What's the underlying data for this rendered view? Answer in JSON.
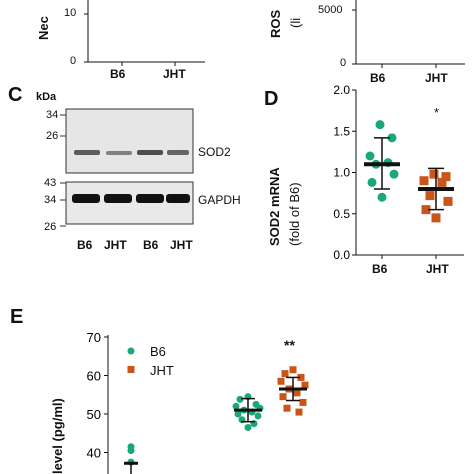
{
  "panelA_partial": {
    "ylabel": "Nec",
    "ytick_top": "10",
    "ytick_bottom": "0",
    "xcats": [
      "B6",
      "JHT"
    ]
  },
  "panelB_partial": {
    "ylabel": "ROS",
    "ylabel_sub": "(li",
    "yticks": [
      "5000",
      "0"
    ],
    "xcats": [
      "B6",
      "JHT"
    ]
  },
  "panelC": {
    "letter": "C",
    "kda_label": "kDa",
    "top_markers": [
      "34",
      "26"
    ],
    "bottom_markers": [
      "43",
      "34",
      "26"
    ],
    "band_top_label": "SOD2",
    "band_bottom_label": "GAPDH",
    "lanes": [
      "B6",
      "JHT",
      "B6",
      "JHT"
    ]
  },
  "panelD": {
    "letter": "D",
    "ylabel_line1": "SOD2 mRNA",
    "ylabel_line2": "(fold of B6)",
    "significance": "*",
    "colors": {
      "B6": "#1aa77a",
      "JHT": "#c8561a"
    },
    "chart_data": {
      "type": "scatter",
      "categories": [
        "B6",
        "JHT"
      ],
      "ylim": [
        0.0,
        2.0
      ],
      "yticks": [
        "0.0",
        "0.5",
        "1.0",
        "1.5",
        "2.0"
      ],
      "series": [
        {
          "name": "B6",
          "values": [
            1.58,
            1.42,
            1.2,
            1.12,
            1.1,
            0.98,
            0.88,
            0.7
          ],
          "mean": 1.1,
          "sd_low": 0.8,
          "sd_high": 1.42
        },
        {
          "name": "JHT",
          "values": [
            0.98,
            0.95,
            0.9,
            0.88,
            0.72,
            0.65,
            0.55,
            0.45
          ],
          "mean": 0.8,
          "sd_low": 0.55,
          "sd_high": 1.05
        }
      ]
    }
  },
  "panelE": {
    "letter": "E",
    "ylabel": "level (pg/ml)",
    "significance": "**",
    "legend": [
      {
        "label": "B6",
        "color": "#1aa77a"
      },
      {
        "label": "JHT",
        "color": "#c8561a"
      }
    ],
    "chart_data": {
      "type": "scatter",
      "ylim": [
        35,
        70
      ],
      "yticks": [
        "70",
        "60",
        "50",
        "40"
      ],
      "series": [
        {
          "name": "B6",
          "group": 1,
          "values": [
            41.5,
            40.5,
            37.5
          ],
          "mean": 37.2
        },
        {
          "name": "B6",
          "group": 2,
          "values": [
            54.5,
            53.8,
            52.5,
            52,
            51.5,
            51,
            50.5,
            50,
            49.5,
            48.5,
            47.5,
            46.5
          ],
          "mean": 51,
          "sd_low": 48,
          "sd_high": 54
        },
        {
          "name": "JHT",
          "group": 2,
          "values": [
            61.5,
            60.5,
            59.5,
            58.5,
            57.5,
            56.5,
            55.5,
            54.5,
            53,
            51.5,
            50.5
          ],
          "mean": 56.5,
          "sd_low": 53.5,
          "sd_high": 59.5
        }
      ]
    }
  }
}
